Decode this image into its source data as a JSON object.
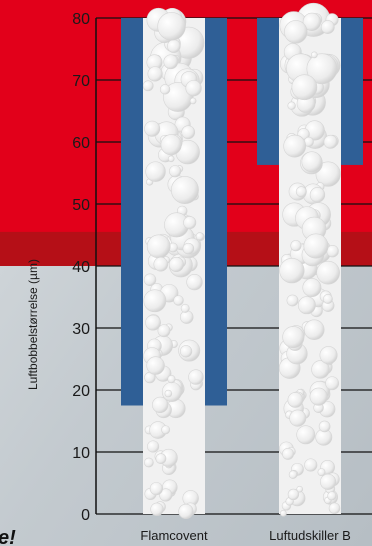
{
  "chart_data": {
    "type": "bar",
    "title": "",
    "ylabel": "Luftbobbelstørrelse (µm)",
    "xlabel": "",
    "ylim": [
      0,
      80
    ],
    "yticks": [
      0,
      10,
      20,
      30,
      40,
      50,
      60,
      70,
      80
    ],
    "grid": true,
    "categories": [
      "Flamcovent",
      "Luftudskiller B"
    ],
    "series": [
      {
        "values": [
          17.5,
          56.3
        ]
      }
    ],
    "colors": {
      "bar": "#2f5f96",
      "upper_band": "#e2001a",
      "upper_band_dark": "#b50f17",
      "lower_band": "#cfd5d9",
      "column_fill": "#f1f1f1",
      "grid": "#111111"
    },
    "band_range": [
      40,
      80
    ],
    "corner_text": "e!"
  }
}
